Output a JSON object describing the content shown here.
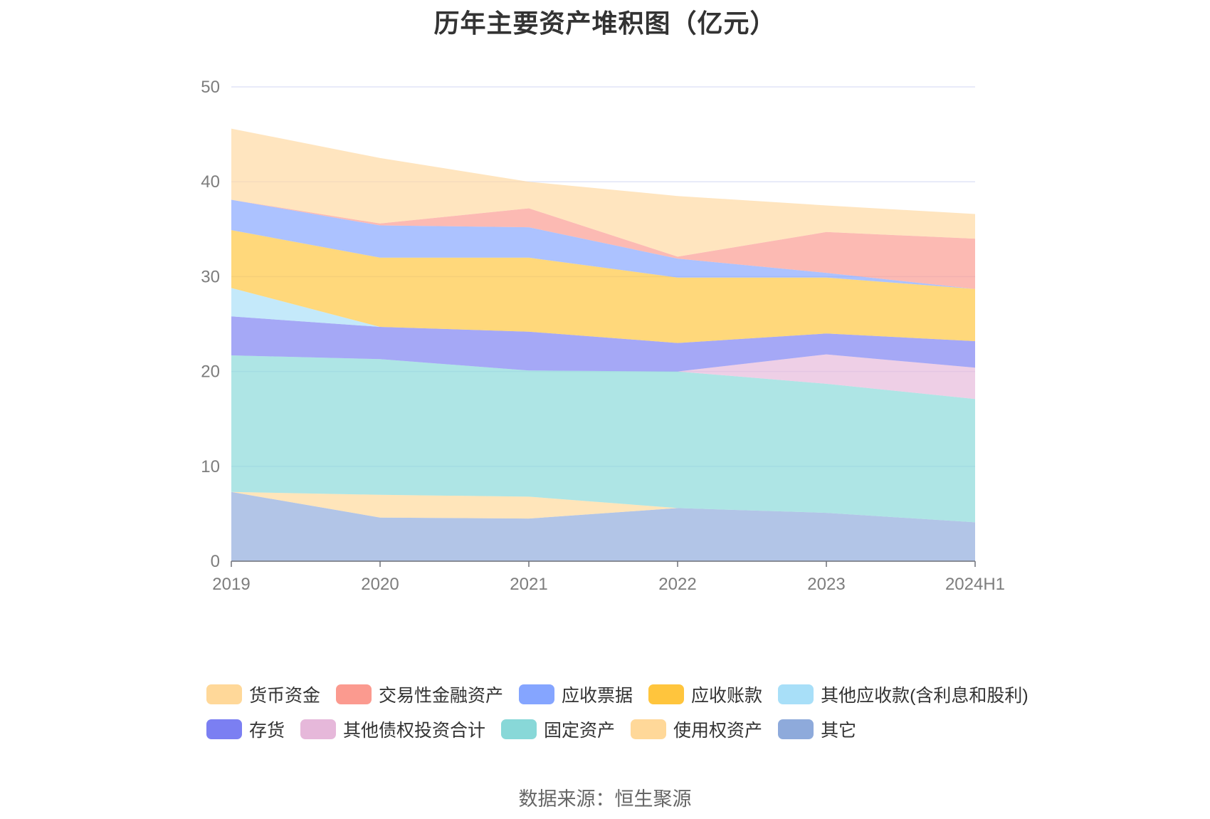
{
  "title": "历年主要资产堆积图（亿元）",
  "source": "数据来源：恒生聚源",
  "chart_data": {
    "type": "area",
    "stacked": true,
    "title": "历年主要资产堆积图（亿元）",
    "categories": [
      "2019",
      "2020",
      "2021",
      "2022",
      "2023",
      "2024H1"
    ],
    "ylim": [
      0,
      50
    ],
    "yticks": [
      0,
      10,
      20,
      30,
      40,
      50
    ],
    "grid": true,
    "legend_position": "bottom",
    "series": [
      {
        "name": "其它",
        "color": "#8eaadb",
        "values": [
          7.3,
          4.6,
          4.5,
          5.6,
          5.1,
          4.1
        ]
      },
      {
        "name": "使用权资产",
        "color": "#ffd899",
        "values": [
          0.0,
          2.4,
          2.3,
          0.0,
          0.0,
          0.0
        ]
      },
      {
        "name": "固定资产",
        "color": "#88d8d8",
        "values": [
          14.4,
          14.3,
          13.3,
          14.4,
          13.6,
          13.0
        ]
      },
      {
        "name": "其他债权投资合计",
        "color": "#e6b8da",
        "values": [
          0.0,
          0.0,
          0.0,
          0.0,
          3.1,
          3.3
        ]
      },
      {
        "name": "存货",
        "color": "#7b7ff2",
        "values": [
          4.1,
          3.4,
          4.1,
          3.0,
          2.2,
          2.8
        ]
      },
      {
        "name": "其他应收款(含利息和股利)",
        "color": "#a8dff8",
        "values": [
          3.0,
          0.0,
          0.0,
          0.0,
          0.0,
          0.0
        ]
      },
      {
        "name": "应收账款",
        "color": "#ffc53d",
        "values": [
          6.1,
          7.3,
          7.8,
          6.9,
          5.9,
          5.5
        ]
      },
      {
        "name": "应收票据",
        "color": "#85a5ff",
        "values": [
          3.2,
          3.4,
          3.2,
          2.0,
          0.5,
          0.0
        ]
      },
      {
        "name": "交易性金融资产",
        "color": "#fb9a8f",
        "values": [
          0.0,
          0.2,
          2.0,
          0.2,
          4.3,
          5.3
        ]
      },
      {
        "name": "货币资金",
        "color": "#ffd9a0",
        "values": [
          7.5,
          6.9,
          2.8,
          6.4,
          2.8,
          2.6
        ]
      }
    ]
  },
  "legend": {
    "row1": [
      {
        "label": "货币资金",
        "color": "#ffd899"
      },
      {
        "label": "交易性金融资产",
        "color": "#fb9a8f"
      },
      {
        "label": "应收票据",
        "color": "#85a5ff"
      },
      {
        "label": "应收账款",
        "color": "#ffc53d"
      },
      {
        "label": "其他应收款(含利息和股利)",
        "color": "#a8dff8"
      }
    ],
    "row2": [
      {
        "label": "存货",
        "color": "#7b7ff2"
      },
      {
        "label": "其他债权投资合计",
        "color": "#e6b8da"
      },
      {
        "label": "固定资产",
        "color": "#88d8d8"
      },
      {
        "label": "使用权资产",
        "color": "#ffd899"
      },
      {
        "label": "其它",
        "color": "#8eaadb"
      }
    ]
  }
}
